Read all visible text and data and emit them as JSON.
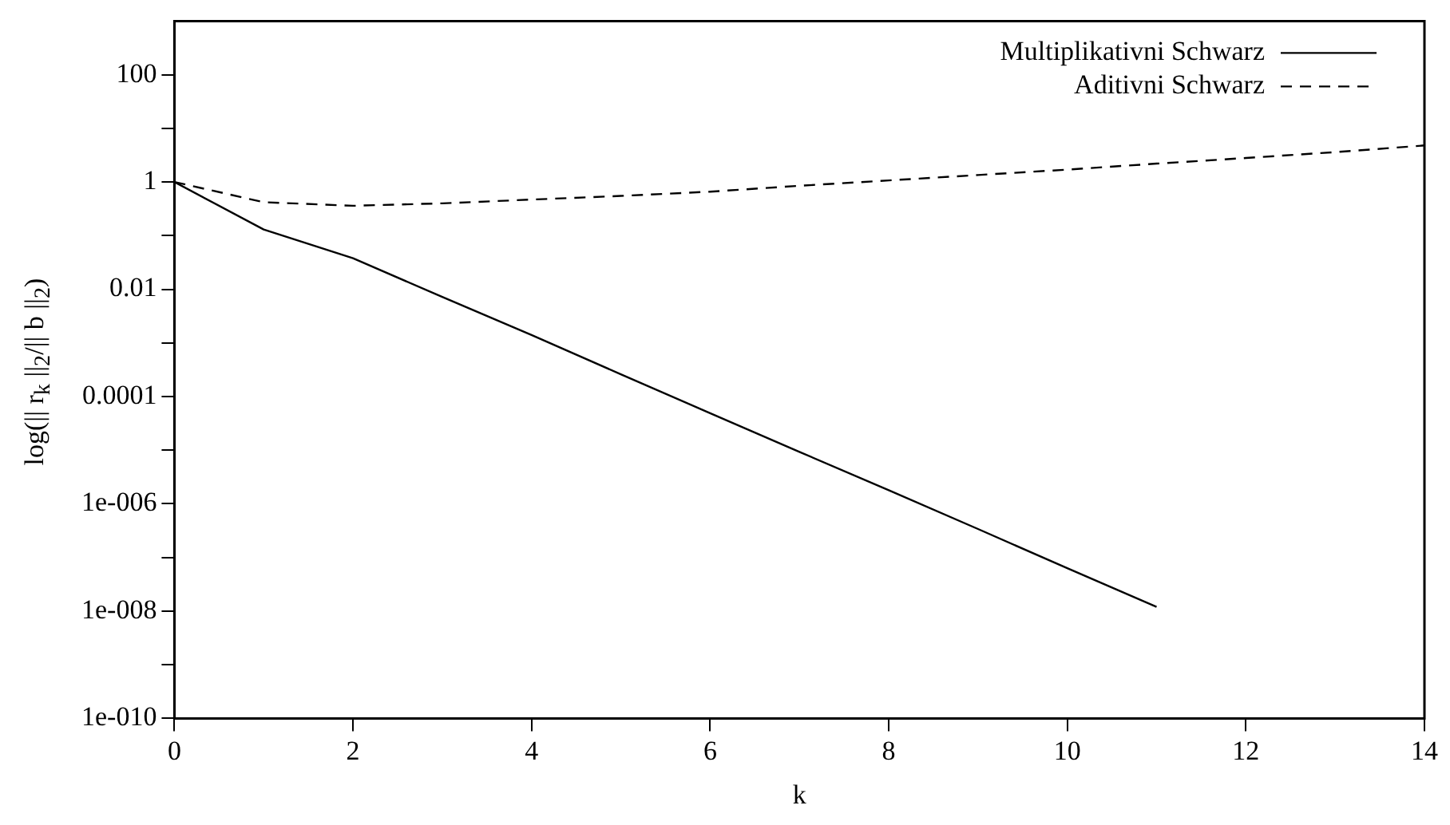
{
  "chart_data": {
    "type": "line",
    "xlabel": "k",
    "ylabel": "log(|| r$_{k}$ ||$_{2}$/|| b ||$_{2}$)",
    "log": "y",
    "xlim": [
      0,
      14
    ],
    "xticks": [
      0,
      2,
      4,
      6,
      8,
      10,
      12,
      14
    ],
    "ylim": [
      1e-10,
      1000
    ],
    "yticks": [
      {
        "value": 1e-10,
        "label": "1e-010"
      },
      {
        "value": 1e-09,
        "label": null
      },
      {
        "value": 1e-08,
        "label": "1e-008"
      },
      {
        "value": 1e-07,
        "label": null
      },
      {
        "value": 1e-06,
        "label": "1e-006"
      },
      {
        "value": 1e-05,
        "label": null
      },
      {
        "value": 0.0001,
        "label": "0.0001"
      },
      {
        "value": 0.001,
        "label": null
      },
      {
        "value": 0.01,
        "label": "0.01"
      },
      {
        "value": 0.1,
        "label": null
      },
      {
        "value": 1,
        "label": "1"
      },
      {
        "value": 10,
        "label": null
      },
      {
        "value": 100,
        "label": "100"
      }
    ],
    "grid": false,
    "legend": "top right",
    "marker": "none",
    "series": [
      {
        "name": "Multiplikativni Schwarz",
        "color": "#000000",
        "line_style": "solid",
        "x": [
          0,
          1,
          2,
          3,
          4,
          5,
          6,
          7,
          8,
          9,
          10,
          11
        ],
        "values": [
          1,
          0.13,
          0.038,
          0.0072,
          0.0014,
          0.00026,
          4.9e-05,
          9.3e-06,
          1.8e-06,
          3.4e-07,
          6.3e-08,
          1.2e-08
        ]
      },
      {
        "name": "Aditivni Schwarz",
        "color": "#000000",
        "line_style": "dashed",
        "x": [
          0,
          1,
          2,
          3,
          4,
          5,
          6,
          7,
          8,
          9,
          10,
          11,
          12,
          13,
          14
        ],
        "values": [
          1,
          0.42,
          0.36,
          0.4,
          0.47,
          0.55,
          0.66,
          0.85,
          1.07,
          1.35,
          1.7,
          2.2,
          2.8,
          3.6,
          4.8
        ]
      }
    ]
  }
}
